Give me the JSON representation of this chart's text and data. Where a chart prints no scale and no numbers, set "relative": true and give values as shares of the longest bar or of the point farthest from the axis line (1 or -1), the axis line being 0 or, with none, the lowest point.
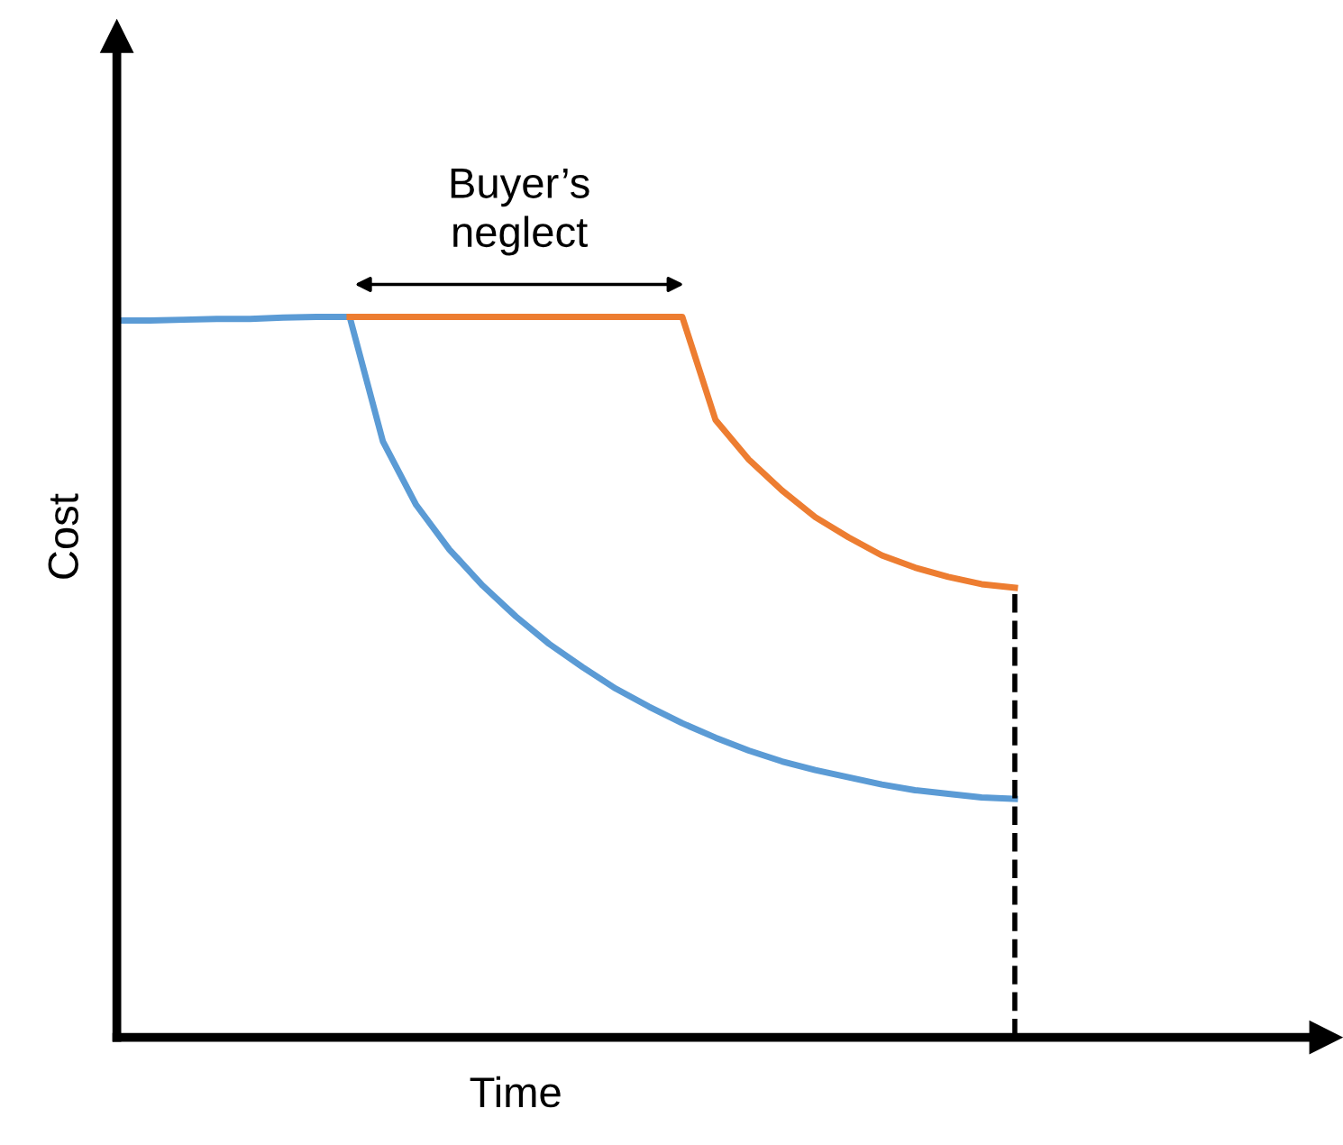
{
  "chart_data": {
    "type": "line",
    "relative": true,
    "xlabel": "Time",
    "ylabel": "Cost",
    "categories": [
      null,
      null,
      null,
      null,
      null,
      null,
      null,
      null,
      null,
      null,
      null,
      null,
      null,
      null,
      null,
      null,
      null,
      null,
      null,
      null,
      null,
      null,
      null,
      null,
      null,
      null,
      null,
      null
    ],
    "series": [
      {
        "color": "#5b9bd5",
        "values": [
          0.995,
          0.995,
          0.996,
          0.997,
          0.997,
          0.999,
          1.0,
          1.0,
          0.827,
          0.739,
          0.677,
          0.627,
          0.584,
          0.546,
          0.514,
          0.484,
          0.459,
          0.436,
          0.416,
          0.398,
          0.383,
          0.371,
          0.361,
          0.351,
          0.343,
          0.338,
          0.333,
          0.331
        ]
      },
      {
        "color": "#ed7d31",
        "values": [
          null,
          null,
          null,
          null,
          null,
          null,
          null,
          1.0,
          1.0,
          1.0,
          1.0,
          1.0,
          1.0,
          1.0,
          1.0,
          1.0,
          1.0,
          1.0,
          0.857,
          0.802,
          0.759,
          0.722,
          0.694,
          0.669,
          0.652,
          0.639,
          0.629,
          0.624
        ]
      }
    ],
    "ref_lines": [
      {
        "axis": "x",
        "color": "#000000",
        "line_style": "dashed"
      }
    ],
    "annotations": [
      "Buyer’s\nneglect"
    ],
    "legend": false
  }
}
